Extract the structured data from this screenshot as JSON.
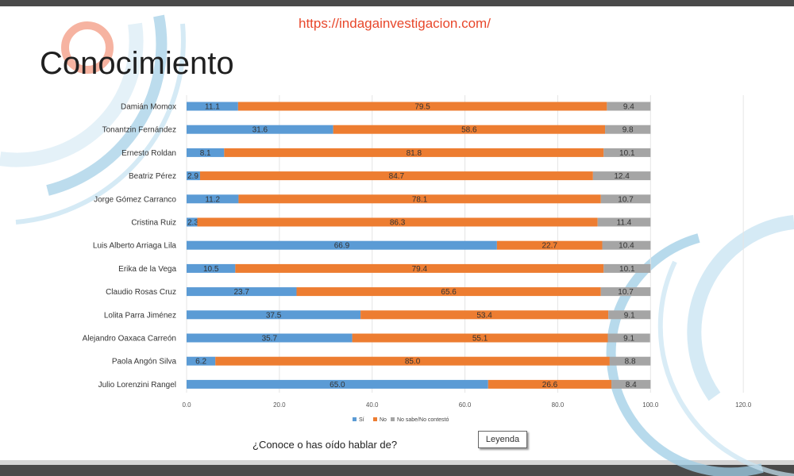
{
  "url": "https://indagainvestigacion.com/",
  "title": "Conocimiento",
  "question": "¿Conoce o has oído hablar de?",
  "legend_button": "Leyenda",
  "colors": {
    "si": "#5b9bd5",
    "no": "#ed7d31",
    "ns": "#a5a5a5",
    "url": "#e8472b",
    "deco": "#9fcde6"
  },
  "chart_data": {
    "type": "bar",
    "orientation": "horizontal",
    "stacked": true,
    "categories": [
      "Damián Momox",
      "Tonantzin Fernández",
      "Ernesto Roldan",
      "Beatriz Pérez",
      "Jorge Gómez Carranco",
      "Cristina Ruiz",
      "Luis Alberto Arriaga Lila",
      "Erika de la Vega",
      "Claudio Rosas Cruz",
      "Lolita Parra Jiménez",
      "Alejandro Oaxaca Carreón",
      "Paola Angón Silva",
      "Julio Lorenzini Rangel"
    ],
    "series": [
      {
        "name": "Sí",
        "values": [
          11.1,
          31.6,
          8.1,
          2.9,
          11.2,
          2.3,
          66.9,
          10.5,
          23.7,
          37.5,
          35.7,
          6.2,
          65.0
        ],
        "labels": [
          "11.1",
          "31.6",
          "8.1",
          "2.9",
          "11.2",
          "2.3",
          "66.9",
          "10.5",
          "23.7",
          "37.5",
          "35.7",
          "6.2",
          "65.0"
        ]
      },
      {
        "name": "No",
        "values": [
          79.5,
          58.6,
          81.8,
          84.7,
          78.1,
          86.3,
          22.7,
          79.4,
          65.6,
          53.4,
          55.1,
          85.0,
          26.6
        ],
        "labels": [
          "79.5",
          "58.6",
          "81.8",
          "84.7",
          "78.1",
          "86.3",
          "22.7",
          "79.4",
          "65.6",
          "53.4",
          "55.1",
          "85.0",
          "26.6"
        ]
      },
      {
        "name": "No sabe/No contestó",
        "values": [
          9.4,
          9.8,
          10.1,
          12.4,
          10.7,
          11.4,
          10.4,
          10.1,
          10.7,
          9.1,
          9.1,
          8.8,
          8.4
        ],
        "labels": [
          "9.4",
          "9.8",
          "10.1",
          "12.4",
          "10.7",
          "11.4",
          "10.4",
          "10.1",
          "10.7",
          "9.1",
          "9.1",
          "8.8",
          "8.4"
        ]
      }
    ],
    "xlim": [
      0,
      120
    ],
    "xticks": [
      "0.0",
      "20.0",
      "40.0",
      "60.0",
      "80.0",
      "100.0",
      "120.0"
    ],
    "grid": true,
    "legend": "bottom"
  }
}
